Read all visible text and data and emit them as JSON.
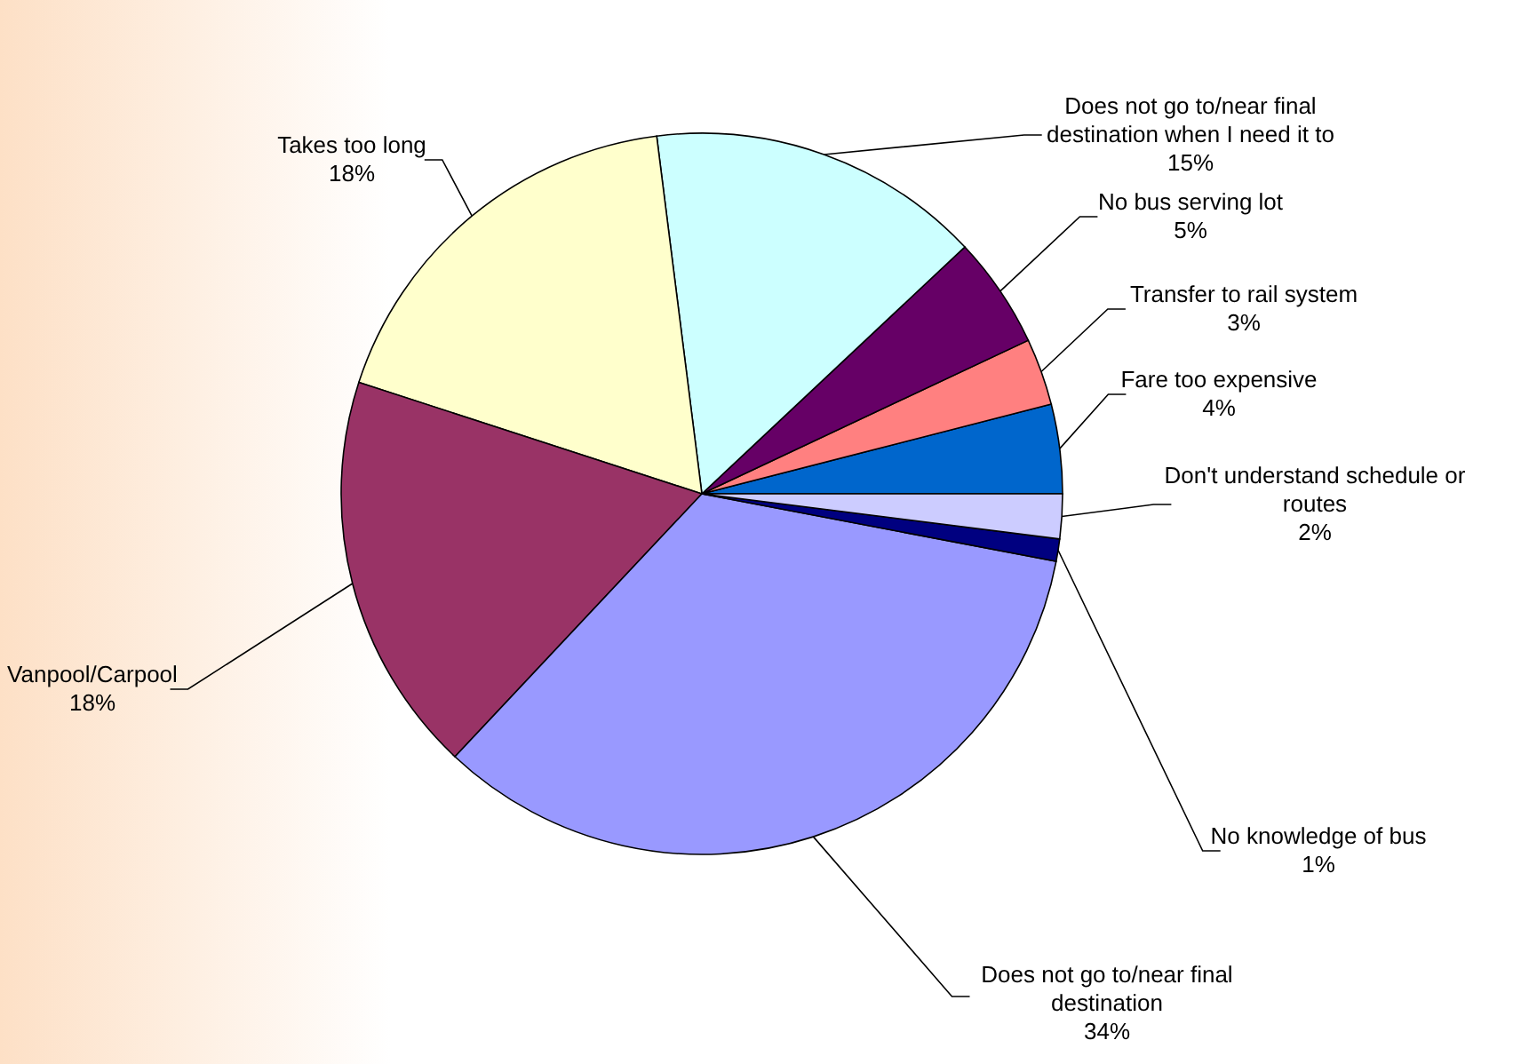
{
  "chart_data": {
    "type": "pie",
    "categories": [
      "Fare too expensive",
      "Transfer to rail system",
      "No bus serving lot",
      "Does not go to/near final destination when I need it to",
      "Takes too long",
      "Vanpool/Carpool",
      "Does not go to/near final destination",
      "No knowledge of bus",
      "Don't understand schedule or routes"
    ],
    "values": [
      4,
      3,
      5,
      15,
      18,
      18,
      34,
      1,
      2
    ],
    "value_labels": [
      "4%",
      "3%",
      "5%",
      "15%",
      "18%",
      "18%",
      "34%",
      "1%",
      "2%"
    ],
    "colors": [
      "#0066cc",
      "#ff8080",
      "#660066",
      "#ccffff",
      "#ffffcc",
      "#993366",
      "#9999ff",
      "#000080",
      "#ccccff"
    ]
  }
}
